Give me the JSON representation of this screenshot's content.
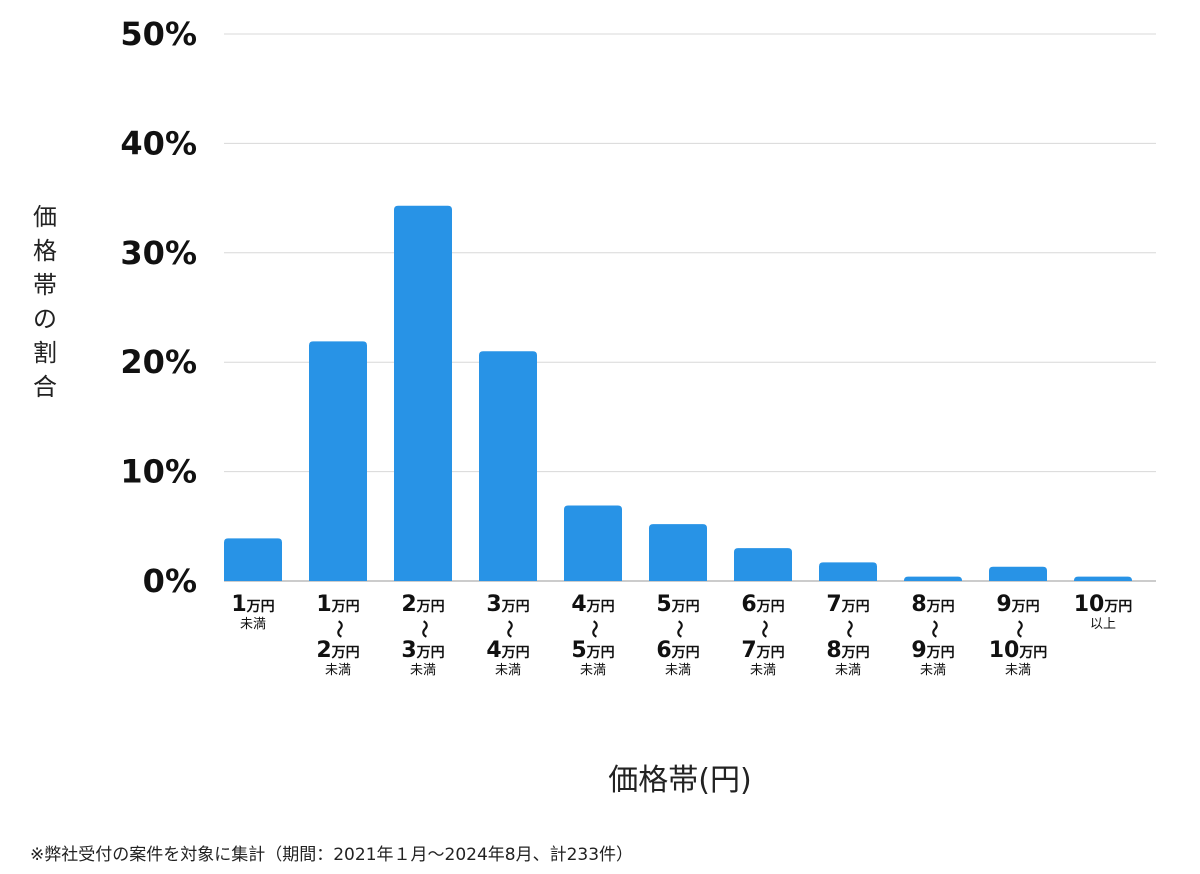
{
  "chart_data": {
    "type": "bar",
    "ylabel": "価格帯の割合",
    "xlabel": "価格帯(円)",
    "ylim": [
      0,
      50
    ],
    "yticks": [
      "0%",
      "10%",
      "20%",
      "30%",
      "40%",
      "50%"
    ],
    "grid": true,
    "bar_color": "#2893E6",
    "categories": [
      {
        "top": "1",
        "top_unit": "万円",
        "tilde": "",
        "bottom": "",
        "bottom_unit": "",
        "suffix": "未満"
      },
      {
        "top": "1",
        "top_unit": "万円",
        "tilde": "〜",
        "bottom": "2",
        "bottom_unit": "万円",
        "suffix": "未満"
      },
      {
        "top": "2",
        "top_unit": "万円",
        "tilde": "〜",
        "bottom": "3",
        "bottom_unit": "万円",
        "suffix": "未満"
      },
      {
        "top": "3",
        "top_unit": "万円",
        "tilde": "〜",
        "bottom": "4",
        "bottom_unit": "万円",
        "suffix": "未満"
      },
      {
        "top": "4",
        "top_unit": "万円",
        "tilde": "〜",
        "bottom": "5",
        "bottom_unit": "万円",
        "suffix": "未満"
      },
      {
        "top": "5",
        "top_unit": "万円",
        "tilde": "〜",
        "bottom": "6",
        "bottom_unit": "万円",
        "suffix": "未満"
      },
      {
        "top": "6",
        "top_unit": "万円",
        "tilde": "〜",
        "bottom": "7",
        "bottom_unit": "万円",
        "suffix": "未満"
      },
      {
        "top": "7",
        "top_unit": "万円",
        "tilde": "〜",
        "bottom": "8",
        "bottom_unit": "万円",
        "suffix": "未満"
      },
      {
        "top": "8",
        "top_unit": "万円",
        "tilde": "〜",
        "bottom": "9",
        "bottom_unit": "万円",
        "suffix": "未満"
      },
      {
        "top": "9",
        "top_unit": "万円",
        "tilde": "〜",
        "bottom": "10",
        "bottom_unit": "万円",
        "suffix": "未満"
      },
      {
        "top": "10",
        "top_unit": "万円",
        "tilde": "",
        "bottom": "",
        "bottom_unit": "",
        "suffix": "以上"
      }
    ],
    "values": [
      3.9,
      21.9,
      34.3,
      21.0,
      6.9,
      5.2,
      3.0,
      1.7,
      0.4,
      1.3,
      0.4
    ]
  },
  "footnote": "※弊社受付の案件を対象に集計（期間：2021年１月～2024年8月、計233件）"
}
